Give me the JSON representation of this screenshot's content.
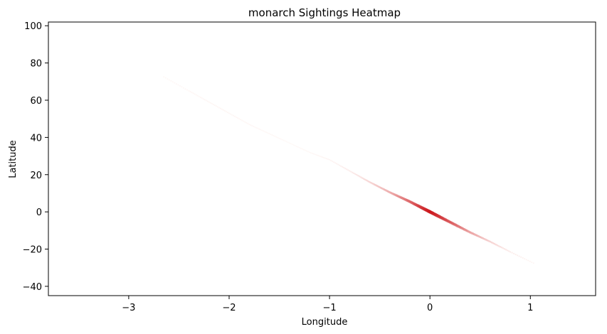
{
  "chart_data": {
    "type": "heatmap",
    "title": "monarch Sightings Heatmap",
    "xlabel": "Longitude",
    "ylabel": "Latitude",
    "xlim": [
      -3.8,
      1.65
    ],
    "ylim": [
      -45,
      102
    ],
    "xticks": [
      -3,
      -2,
      -1,
      0,
      1
    ],
    "yticks": [
      -40,
      -20,
      0,
      20,
      40,
      60,
      80,
      100
    ],
    "xtick_labels": [
      "−3",
      "−2",
      "−1",
      "0",
      "1"
    ],
    "ytick_labels": [
      "−40",
      "−20",
      "0",
      "20",
      "40",
      "60",
      "80",
      "100"
    ],
    "grid": false,
    "colormap": "Reds",
    "color_low": "#fff5f0",
    "color_high": "#cb181d",
    "density": [
      {
        "x": -2.65,
        "y": 72.5,
        "value": 0.05
      },
      {
        "x": -2.4,
        "y": 65,
        "value": 0.06
      },
      {
        "x": -2.2,
        "y": 59,
        "value": 0.07
      },
      {
        "x": -2.0,
        "y": 53,
        "value": 0.07
      },
      {
        "x": -1.8,
        "y": 47,
        "value": 0.06
      },
      {
        "x": -1.6,
        "y": 42,
        "value": 0.05
      },
      {
        "x": -1.4,
        "y": 37,
        "value": 0.04
      },
      {
        "x": -1.2,
        "y": 32,
        "value": 0.05
      },
      {
        "x": -1.0,
        "y": 28,
        "value": 0.08
      },
      {
        "x": -0.8,
        "y": 22,
        "value": 0.15
      },
      {
        "x": -0.6,
        "y": 16,
        "value": 0.28
      },
      {
        "x": -0.4,
        "y": 10.5,
        "value": 0.45
      },
      {
        "x": -0.2,
        "y": 5.5,
        "value": 0.7
      },
      {
        "x": 0.0,
        "y": 0.0,
        "value": 1.0
      },
      {
        "x": 0.2,
        "y": -5.5,
        "value": 0.75
      },
      {
        "x": 0.4,
        "y": -11,
        "value": 0.5
      },
      {
        "x": 0.6,
        "y": -16,
        "value": 0.3
      },
      {
        "x": 0.8,
        "y": -21.5,
        "value": 0.15
      },
      {
        "x": 1.05,
        "y": -28,
        "value": 0.06
      }
    ]
  }
}
